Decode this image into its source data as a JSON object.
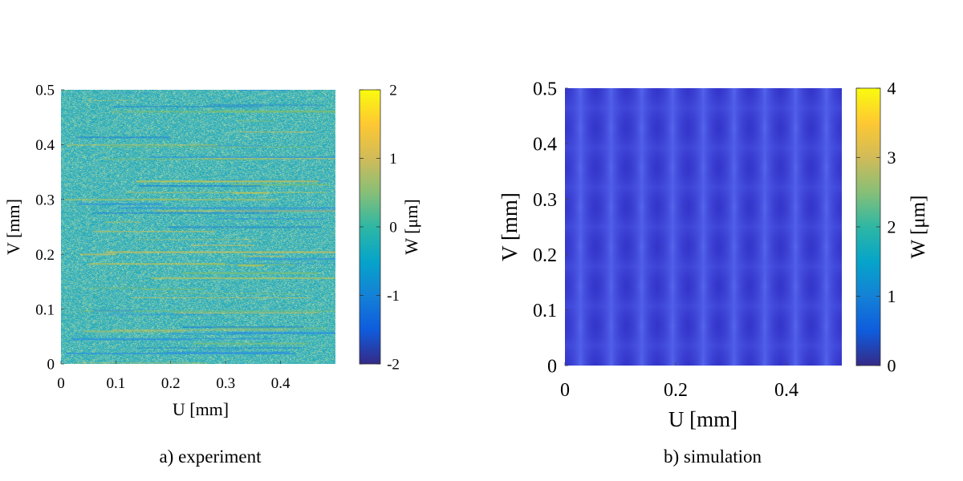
{
  "chart_data": [
    {
      "type": "heatmap",
      "title": "",
      "caption": "a) experiment",
      "xlabel": "U [mm]",
      "ylabel": "V [mm]",
      "xlim": [
        0,
        0.5
      ],
      "ylim": [
        0,
        0.5
      ],
      "x_ticks": [
        "0",
        "0.1",
        "0.2",
        "0.3",
        "0.4"
      ],
      "y_ticks": [
        "0",
        "0.1",
        "0.2",
        "0.3",
        "0.4",
        "0.5"
      ],
      "colorbar": {
        "label": "W [μm]",
        "range": [
          -2,
          2
        ],
        "ticks": [
          "-2",
          "-1",
          "0",
          "1",
          "2"
        ]
      },
      "colormap": "parula",
      "pattern": "noisy field near 0 μm with horizontal streaks, values mostly between -1 and 1"
    },
    {
      "type": "heatmap",
      "title": "",
      "caption": "b) simulation",
      "xlabel": "U [mm]",
      "ylabel": "V [mm]",
      "xlim": [
        0,
        0.5
      ],
      "ylim": [
        0,
        0.5
      ],
      "x_ticks": [
        "0",
        "0.2",
        "0.4"
      ],
      "y_ticks": [
        "0",
        "0.1",
        "0.2",
        "0.3",
        "0.4",
        "0.5"
      ],
      "colorbar": {
        "label": "W [μm]",
        "range": [
          0,
          4
        ],
        "ticks": [
          "0",
          "1",
          "2",
          "3",
          "4"
        ]
      },
      "colormap": "parula",
      "pattern": "smooth periodic grid, 9 columns and 7 rows of peaks, values between 0.2 and 0.7 μm"
    }
  ]
}
